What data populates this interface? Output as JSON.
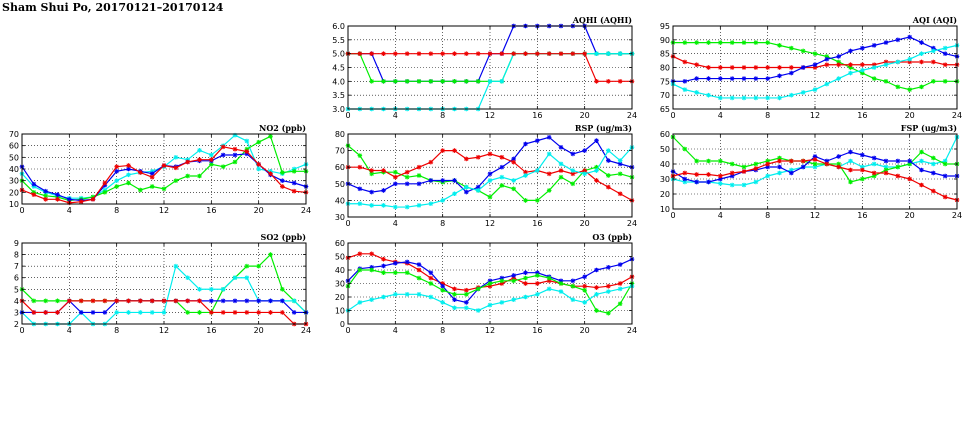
{
  "page": {
    "title": "Sham Shui Po, 20170121–20170124"
  },
  "colors": {
    "blue": "#0000ee",
    "red": "#ee0000",
    "green": "#00ee00",
    "cyan": "#00eeee",
    "grid": "#000000"
  },
  "chart_data": [
    {
      "id": "aqhi",
      "type": "line",
      "title": "AQHI (AQHI)",
      "xlim": [
        0,
        24
      ],
      "xticks": [
        0,
        4,
        8,
        12,
        16,
        20,
        24
      ],
      "ylim": [
        3.0,
        6.0
      ],
      "yticks": [
        3.0,
        3.5,
        4.0,
        4.5,
        5.0,
        5.5,
        6.0
      ],
      "ytick_decimals": 1,
      "series": [
        {
          "color": "blue",
          "values": [
            5,
            5,
            5,
            4,
            4,
            4,
            4,
            4,
            4,
            4,
            4,
            4,
            5,
            5,
            6,
            6,
            6,
            6,
            6,
            6,
            6,
            5,
            5,
            5,
            5
          ]
        },
        {
          "color": "green",
          "values": [
            5,
            5,
            4,
            4,
            4,
            4,
            4,
            4,
            4,
            4,
            4,
            4,
            4,
            4,
            5,
            5,
            5,
            5,
            5,
            5,
            5,
            5,
            5,
            5,
            5
          ]
        },
        {
          "color": "cyan",
          "values": [
            3,
            3,
            3,
            3,
            3,
            3,
            3,
            3,
            3,
            3,
            3,
            3,
            4,
            4,
            5,
            5,
            5,
            5,
            5,
            5,
            5,
            5,
            5,
            5,
            5
          ]
        },
        {
          "color": "red",
          "values": [
            5,
            5,
            5,
            5,
            5,
            5,
            5,
            5,
            5,
            5,
            5,
            5,
            5,
            5,
            5,
            5,
            5,
            5,
            5,
            5,
            5,
            4,
            4,
            4,
            4
          ]
        }
      ]
    },
    {
      "id": "aqi",
      "type": "line",
      "title": "AQI (AQI)",
      "xlim": [
        0,
        24
      ],
      "xticks": [
        0,
        4,
        8,
        12,
        16,
        20,
        24
      ],
      "ylim": [
        65,
        95
      ],
      "yticks": [
        65,
        70,
        75,
        80,
        85,
        90,
        95
      ],
      "ytick_decimals": 0,
      "series": [
        {
          "color": "green",
          "values": [
            89,
            89,
            89,
            89,
            89,
            89,
            89,
            89,
            89,
            88,
            87,
            86,
            85,
            84,
            82,
            80,
            78,
            76,
            75,
            73,
            72,
            73,
            75,
            75,
            75
          ]
        },
        {
          "color": "red",
          "values": [
            84,
            82,
            81,
            80,
            80,
            80,
            80,
            80,
            80,
            80,
            80,
            80,
            80,
            81,
            81,
            81,
            81,
            81,
            82,
            82,
            82,
            82,
            82,
            81,
            81
          ]
        },
        {
          "color": "blue",
          "values": [
            75,
            75,
            76,
            76,
            76,
            76,
            76,
            76,
            76,
            77,
            78,
            80,
            81,
            83,
            84,
            86,
            87,
            88,
            89,
            90,
            91,
            89,
            87,
            85,
            84
          ]
        },
        {
          "color": "cyan",
          "values": [
            74,
            72,
            71,
            70,
            69,
            69,
            69,
            69,
            69,
            69,
            70,
            71,
            72,
            74,
            76,
            78,
            79,
            80,
            81,
            82,
            83,
            85,
            86,
            87,
            88
          ]
        }
      ]
    },
    {
      "id": "no2",
      "type": "line",
      "title": "NO2 (ppb)",
      "xlim": [
        0,
        24
      ],
      "xticks": [
        0,
        4,
        8,
        12,
        16,
        20,
        24
      ],
      "ylim": [
        10,
        70
      ],
      "yticks": [
        10,
        20,
        30,
        40,
        50,
        60,
        70
      ],
      "ytick_decimals": 0,
      "series": [
        {
          "color": "cyan",
          "values": [
            36,
            25,
            20,
            17,
            15,
            15,
            16,
            22,
            30,
            35,
            37,
            38,
            42,
            50,
            48,
            56,
            52,
            60,
            69,
            64,
            40,
            38,
            36,
            40,
            44
          ]
        },
        {
          "color": "green",
          "values": [
            30,
            20,
            17,
            16,
            13,
            14,
            16,
            20,
            25,
            28,
            22,
            25,
            23,
            30,
            34,
            34,
            44,
            42,
            46,
            57,
            63,
            68,
            37,
            38,
            38
          ]
        },
        {
          "color": "blue",
          "values": [
            42,
            27,
            21,
            18,
            14,
            13,
            14,
            26,
            38,
            40,
            38,
            36,
            43,
            42,
            46,
            47,
            47,
            52,
            52,
            53,
            44,
            35,
            30,
            28,
            25
          ]
        },
        {
          "color": "red",
          "values": [
            22,
            18,
            14,
            14,
            11,
            12,
            14,
            28,
            42,
            43,
            37,
            33,
            43,
            41,
            46,
            48,
            48,
            59,
            57,
            55,
            44,
            36,
            25,
            21,
            20
          ]
        }
      ]
    },
    {
      "id": "rsp",
      "type": "line",
      "title": "RSP (ug/m3)",
      "xlim": [
        0,
        24
      ],
      "xticks": [
        0,
        4,
        8,
        12,
        16,
        20,
        24
      ],
      "ylim": [
        30,
        80
      ],
      "yticks": [
        30,
        40,
        50,
        60,
        70,
        80
      ],
      "ytick_decimals": 0,
      "series": [
        {
          "color": "green",
          "values": [
            73,
            67,
            56,
            57,
            57,
            54,
            55,
            52,
            51,
            52,
            48,
            46,
            42,
            49,
            47,
            40,
            40,
            46,
            54,
            50,
            58,
            60,
            55,
            56,
            54
          ]
        },
        {
          "color": "blue",
          "values": [
            50,
            47,
            45,
            46,
            50,
            50,
            50,
            52,
            52,
            52,
            45,
            48,
            56,
            60,
            65,
            74,
            76,
            78,
            72,
            68,
            70,
            76,
            64,
            62,
            60
          ]
        },
        {
          "color": "red",
          "values": [
            60,
            60,
            58,
            58,
            54,
            57,
            60,
            63,
            70,
            70,
            65,
            66,
            68,
            66,
            63,
            57,
            58,
            56,
            58,
            56,
            58,
            52,
            48,
            44,
            40
          ]
        },
        {
          "color": "cyan",
          "values": [
            38,
            38,
            37,
            37,
            36,
            36,
            37,
            38,
            40,
            44,
            48,
            46,
            52,
            54,
            52,
            55,
            58,
            68,
            62,
            58,
            56,
            58,
            70,
            64,
            72
          ]
        }
      ]
    },
    {
      "id": "fsp",
      "type": "line",
      "title": "FSP (ug/m3)",
      "xlim": [
        0,
        24
      ],
      "xticks": [
        0,
        4,
        8,
        12,
        16,
        20,
        24
      ],
      "ylim": [
        10,
        60
      ],
      "yticks": [
        10,
        20,
        30,
        40,
        50,
        60
      ],
      "ytick_decimals": 0,
      "series": [
        {
          "color": "cyan",
          "values": [
            30,
            28,
            28,
            28,
            27,
            26,
            26,
            28,
            32,
            34,
            36,
            38,
            38,
            40,
            38,
            42,
            38,
            40,
            38,
            38,
            40,
            42,
            40,
            42,
            58
          ]
        },
        {
          "color": "green",
          "values": [
            58,
            50,
            42,
            42,
            42,
            40,
            38,
            40,
            42,
            44,
            42,
            42,
            40,
            40,
            40,
            28,
            30,
            32,
            36,
            38,
            40,
            48,
            44,
            40,
            40
          ]
        },
        {
          "color": "blue",
          "values": [
            35,
            30,
            28,
            28,
            30,
            32,
            35,
            36,
            38,
            38,
            34,
            38,
            45,
            42,
            45,
            48,
            46,
            44,
            42,
            42,
            42,
            36,
            34,
            32,
            32
          ]
        },
        {
          "color": "red",
          "values": [
            32,
            34,
            33,
            33,
            32,
            34,
            35,
            37,
            40,
            42,
            42,
            42,
            43,
            40,
            38,
            36,
            36,
            34,
            34,
            32,
            30,
            26,
            22,
            18,
            16
          ]
        }
      ]
    },
    {
      "id": "so2",
      "type": "line",
      "title": "SO2 (ppb)",
      "xlim": [
        0,
        24
      ],
      "xticks": [
        0,
        4,
        8,
        12,
        16,
        20,
        24
      ],
      "ylim": [
        2,
        9
      ],
      "yticks": [
        2,
        3,
        4,
        5,
        6,
        7,
        8,
        9
      ],
      "ytick_decimals": 0,
      "series": [
        {
          "color": "green",
          "values": [
            5,
            4,
            4,
            4,
            4,
            4,
            4,
            4,
            4,
            4,
            4,
            4,
            4,
            4,
            3,
            3,
            3,
            5,
            6,
            7,
            7,
            8,
            5,
            4,
            3
          ]
        },
        {
          "color": "cyan",
          "values": [
            3,
            2,
            2,
            2,
            2,
            3,
            2,
            2,
            3,
            3,
            3,
            3,
            3,
            7,
            6,
            5,
            5,
            5,
            6,
            6,
            4,
            4,
            4,
            4,
            3
          ]
        },
        {
          "color": "blue",
          "values": [
            3,
            3,
            3,
            3,
            4,
            3,
            3,
            3,
            4,
            4,
            4,
            4,
            4,
            4,
            4,
            4,
            4,
            4,
            4,
            4,
            4,
            4,
            4,
            3,
            3
          ]
        },
        {
          "color": "red",
          "values": [
            4,
            3,
            3,
            3,
            4,
            4,
            4,
            4,
            4,
            4,
            4,
            4,
            4,
            4,
            4,
            4,
            3,
            3,
            3,
            3,
            3,
            3,
            3,
            2,
            2
          ]
        }
      ]
    },
    {
      "id": "o3",
      "type": "line",
      "title": "O3 (ppb)",
      "xlim": [
        0,
        24
      ],
      "xticks": [
        0,
        4,
        8,
        12,
        16,
        20,
        24
      ],
      "ylim": [
        0,
        60
      ],
      "yticks": [
        0,
        10,
        20,
        30,
        40,
        50,
        60
      ],
      "ytick_decimals": 0,
      "series": [
        {
          "color": "red",
          "values": [
            49,
            52,
            52,
            48,
            46,
            45,
            40,
            34,
            30,
            26,
            25,
            27,
            28,
            30,
            34,
            30,
            30,
            32,
            30,
            28,
            28,
            27,
            28,
            30,
            35
          ]
        },
        {
          "color": "blue",
          "values": [
            32,
            41,
            42,
            43,
            45,
            46,
            44,
            38,
            28,
            18,
            16,
            26,
            32,
            34,
            36,
            38,
            38,
            35,
            32,
            32,
            35,
            40,
            42,
            44,
            48
          ]
        },
        {
          "color": "green",
          "values": [
            28,
            40,
            40,
            38,
            38,
            38,
            34,
            30,
            25,
            22,
            22,
            26,
            30,
            32,
            32,
            34,
            36,
            34,
            30,
            28,
            25,
            10,
            8,
            15,
            30
          ]
        },
        {
          "color": "cyan",
          "values": [
            10,
            16,
            18,
            20,
            22,
            22,
            22,
            20,
            16,
            12,
            12,
            10,
            14,
            16,
            18,
            20,
            22,
            26,
            24,
            18,
            16,
            22,
            24,
            26,
            28
          ]
        }
      ]
    }
  ]
}
